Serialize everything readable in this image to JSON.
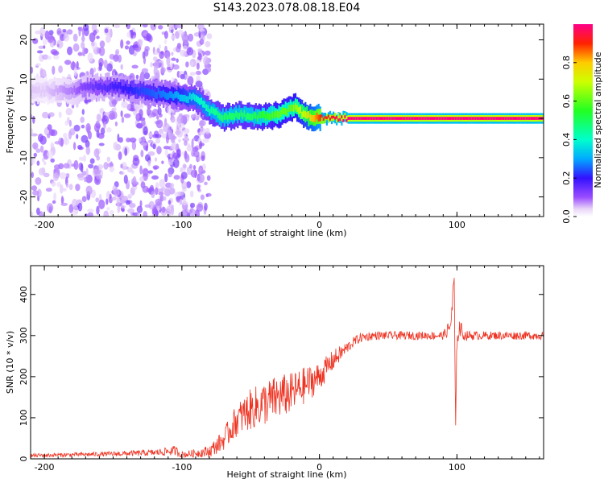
{
  "page_title": "S143.2023.078.08.18.E04",
  "colors": {
    "snr_line": "#ee3322",
    "frame": "#000000",
    "background": "#ffffff"
  },
  "chart_data": [
    {
      "type": "heatmap",
      "title": "S143.2023.078.08.18.E04",
      "xlabel": "Height of straight line (km)",
      "ylabel": "Frequency (Hz)",
      "xlim": [
        -210,
        163
      ],
      "ylim": [
        -25,
        24
      ],
      "x_ticks": [
        -200,
        -100,
        0,
        100
      ],
      "y_ticks": [
        -20,
        -10,
        0,
        10,
        20
      ],
      "x_tick_labels": [
        "-200",
        "-100",
        "0",
        "100"
      ],
      "y_tick_labels": [
        "-20",
        "-10",
        "0",
        "10",
        "20"
      ],
      "colormap": "rainbow (magenta→blue→cyan→green→yellow→red)",
      "colorbar": {
        "label": "Normalized spectral amplitude",
        "range": [
          0,
          1
        ],
        "ticks": [
          0.0,
          0.2,
          0.4,
          0.6,
          0.8
        ],
        "tick_labels": [
          "0.0",
          "0.2",
          "0.4",
          "0.6",
          "0.8"
        ]
      },
      "ridge": {
        "x": [
          -200,
          -180,
          -170,
          -150,
          -130,
          -110,
          -100,
          -90,
          -80,
          -70,
          -60,
          -50,
          -40,
          -30,
          -22,
          -18,
          -12,
          -5,
          0,
          20,
          50,
          90,
          100,
          130,
          163
        ],
        "frequency": [
          7,
          7,
          8,
          8,
          7,
          6,
          5.5,
          5,
          2,
          0,
          1,
          0.5,
          0.5,
          1,
          2.5,
          3,
          1,
          0,
          0,
          0,
          0,
          0,
          0,
          0,
          0
        ],
        "amplitude": [
          0.05,
          0.1,
          0.15,
          0.2,
          0.25,
          0.3,
          0.35,
          0.4,
          0.45,
          0.5,
          0.5,
          0.5,
          0.55,
          0.6,
          0.6,
          0.65,
          0.7,
          0.8,
          0.9,
          1.0,
          1.0,
          1.0,
          1.0,
          1.0,
          1.0
        ]
      }
    },
    {
      "type": "line",
      "xlabel": "Height of straight line (km)",
      "ylabel": "SNR (10 * v/v)",
      "xlim": [
        -210,
        163
      ],
      "ylim": [
        0,
        470
      ],
      "x_ticks": [
        -200,
        -100,
        0,
        100
      ],
      "y_ticks": [
        0,
        100,
        200,
        300,
        400
      ],
      "x_tick_labels": [
        "-200",
        "-100",
        "0",
        "100"
      ],
      "y_tick_labels": [
        "0",
        "100",
        "200",
        "300",
        "400"
      ],
      "series": [
        {
          "color": "#ee3322",
          "x": [
            -210,
            -180,
            -150,
            -120,
            -105,
            -100,
            -90,
            -80,
            -70,
            -60,
            -50,
            -40,
            -30,
            -20,
            -10,
            0,
            10,
            20,
            25,
            30,
            40,
            60,
            80,
            90,
            95,
            97,
            98,
            99,
            100,
            102,
            105,
            120,
            140,
            163
          ],
          "y": [
            8,
            10,
            12,
            15,
            20,
            10,
            14,
            18,
            45,
            95,
            120,
            135,
            150,
            160,
            180,
            200,
            240,
            270,
            285,
            295,
            300,
            300,
            300,
            300,
            320,
            380,
            440,
            60,
            300,
            320,
            300,
            300,
            300,
            300
          ],
          "noise": [
            5,
            5,
            6,
            8,
            12,
            8,
            10,
            15,
            25,
            40,
            50,
            55,
            55,
            50,
            45,
            35,
            25,
            15,
            12,
            12,
            10,
            10,
            10,
            10,
            20,
            40,
            40,
            10,
            30,
            25,
            12,
            10,
            10,
            10
          ]
        }
      ]
    }
  ]
}
